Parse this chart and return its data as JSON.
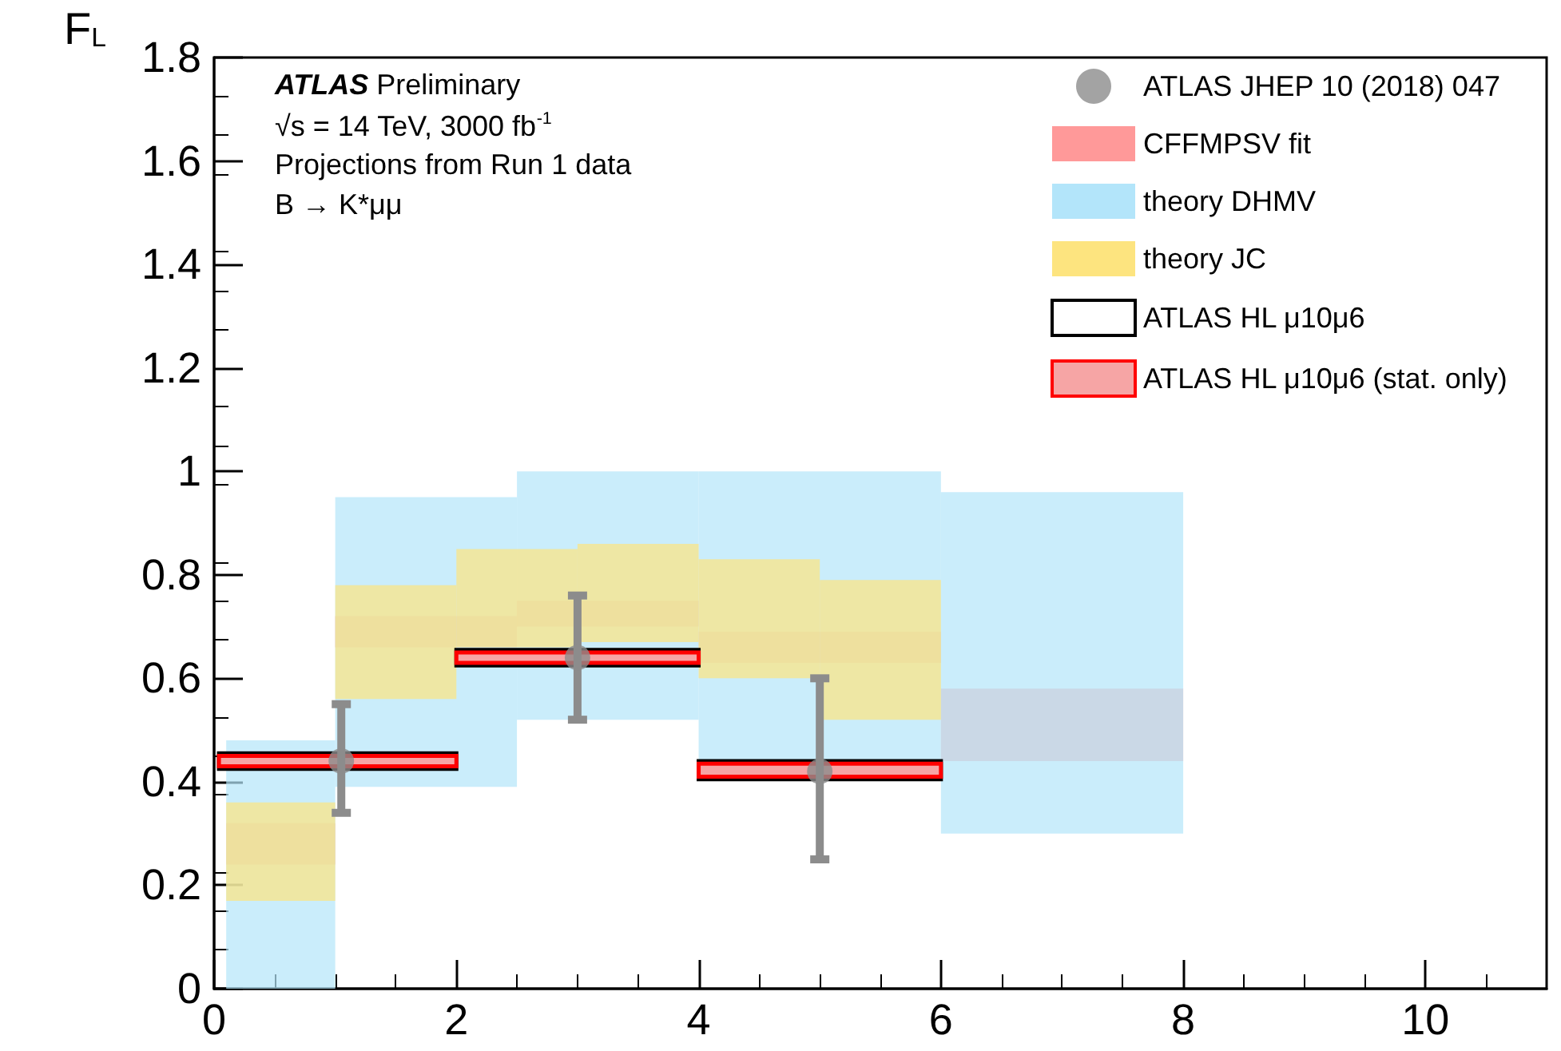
{
  "chart_data": {
    "type": "histogram",
    "ylabel": "F$_{L}$",
    "annotations": [
      "ATLAS Preliminary",
      "√s = 14 TeV, 3000 fb$^{-1}$",
      "Projections from Run 1 data",
      "B → K*μμ"
    ],
    "xlim": [
      0,
      11
    ],
    "xticks": [
      0,
      2,
      4,
      6,
      8,
      10
    ],
    "ylim": [
      0,
      1.8
    ],
    "yticks": [
      0,
      0.2,
      0.4,
      0.6,
      0.8,
      1,
      1.2,
      1.4,
      1.6,
      1.8
    ],
    "grid": false,
    "legend": "top right",
    "series": [
      {
        "name": "ATLAS JHEP 10 (2018) 047",
        "type": "scatter",
        "marker": "circle",
        "color": "#8c8c8c",
        "x": [
          1.05,
          3,
          5
        ],
        "values": [
          0.44,
          0.64,
          0.42
        ],
        "errors": [
          [
            0.34,
            0.55
          ],
          [
            0.52,
            0.76
          ],
          [
            0.25,
            0.6
          ]
        ]
      },
      {
        "name": "CFFMPSV fit",
        "color": "#ff9999",
        "bins": [
          0.1,
          1,
          2.5,
          4,
          6,
          8
        ],
        "base": [
          0.24,
          0.66,
          0.7,
          0.63,
          0.44
        ],
        "values": [
          0.08,
          0.06,
          0.05,
          0.06,
          0.14
        ]
      },
      {
        "name": "theory DHMV",
        "color": "#b3e5fa",
        "bins": [
          0.1,
          1,
          2.5,
          4,
          6,
          8
        ],
        "base": [
          0,
          0.39,
          0.52,
          0.41,
          0.3
        ],
        "values": [
          0.48,
          0.56,
          0.48,
          0.59,
          0.66
        ]
      },
      {
        "name": "theory JC",
        "color": "#fde47f",
        "bins": [
          0.1,
          1,
          2,
          3,
          4,
          5,
          6
        ],
        "base": [
          0.17,
          0.56,
          0.66,
          0.67,
          0.6,
          0.52
        ],
        "values": [
          0.19,
          0.22,
          0.19,
          0.19,
          0.23,
          0.27
        ]
      },
      {
        "name": "ATLAS HL μ10μ6",
        "color": "#000000",
        "bins": [
          0.04,
          2,
          4,
          6
        ],
        "base": [
          0.425,
          0.625,
          0.405
        ],
        "values": [
          0.03,
          0.03,
          0.035
        ]
      },
      {
        "name": "ATLAS HL μ10μ6 (stat. only)",
        "color": "#ff0000",
        "bins": [
          0.04,
          2,
          4,
          6
        ],
        "base": [
          0.43,
          0.63,
          0.41
        ],
        "values": [
          0.02,
          0.02,
          0.025
        ]
      }
    ]
  }
}
